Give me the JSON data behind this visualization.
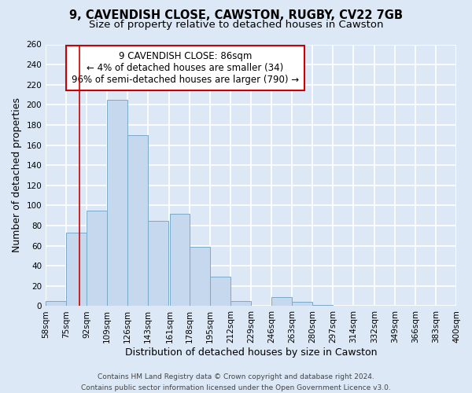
{
  "title_line1": "9, CAVENDISH CLOSE, CAWSTON, RUGBY, CV22 7GB",
  "title_line2": "Size of property relative to detached houses in Cawston",
  "xlabel": "Distribution of detached houses by size in Cawston",
  "ylabel": "Number of detached properties",
  "bin_labels": [
    "58sqm",
    "75sqm",
    "92sqm",
    "109sqm",
    "126sqm",
    "143sqm",
    "161sqm",
    "178sqm",
    "195sqm",
    "212sqm",
    "229sqm",
    "246sqm",
    "263sqm",
    "280sqm",
    "297sqm",
    "314sqm",
    "332sqm",
    "349sqm",
    "366sqm",
    "383sqm",
    "400sqm"
  ],
  "bin_edges": [
    58,
    75,
    92,
    109,
    126,
    143,
    161,
    178,
    195,
    212,
    229,
    246,
    263,
    280,
    297,
    314,
    332,
    349,
    366,
    383,
    400
  ],
  "bar_values": [
    5,
    73,
    95,
    205,
    170,
    85,
    92,
    59,
    29,
    5,
    0,
    9,
    4,
    1,
    0,
    0,
    0,
    0,
    0,
    0
  ],
  "bar_color": "#c5d8ed",
  "bar_edge_color": "#7aaac8",
  "property_line_x": 86,
  "ylim": [
    0,
    260
  ],
  "yticks": [
    0,
    20,
    40,
    60,
    80,
    100,
    120,
    140,
    160,
    180,
    200,
    220,
    240,
    260
  ],
  "annotation_title": "9 CAVENDISH CLOSE: 86sqm",
  "annotation_line2": "← 4% of detached houses are smaller (34)",
  "annotation_line3": "96% of semi-detached houses are larger (790) →",
  "annotation_box_facecolor": "#ffffff",
  "annotation_box_edgecolor": "#cc0000",
  "vline_color": "#cc0000",
  "footer_line1": "Contains HM Land Registry data © Crown copyright and database right 2024.",
  "footer_line2": "Contains public sector information licensed under the Open Government Licence v3.0.",
  "background_color": "#dce8f5",
  "plot_bg_color": "#dce8f5",
  "grid_color": "#ffffff",
  "title_fontsize": 10.5,
  "subtitle_fontsize": 9.5,
  "axis_label_fontsize": 9,
  "tick_fontsize": 7.5,
  "annotation_fontsize": 8.5,
  "footer_fontsize": 6.5
}
